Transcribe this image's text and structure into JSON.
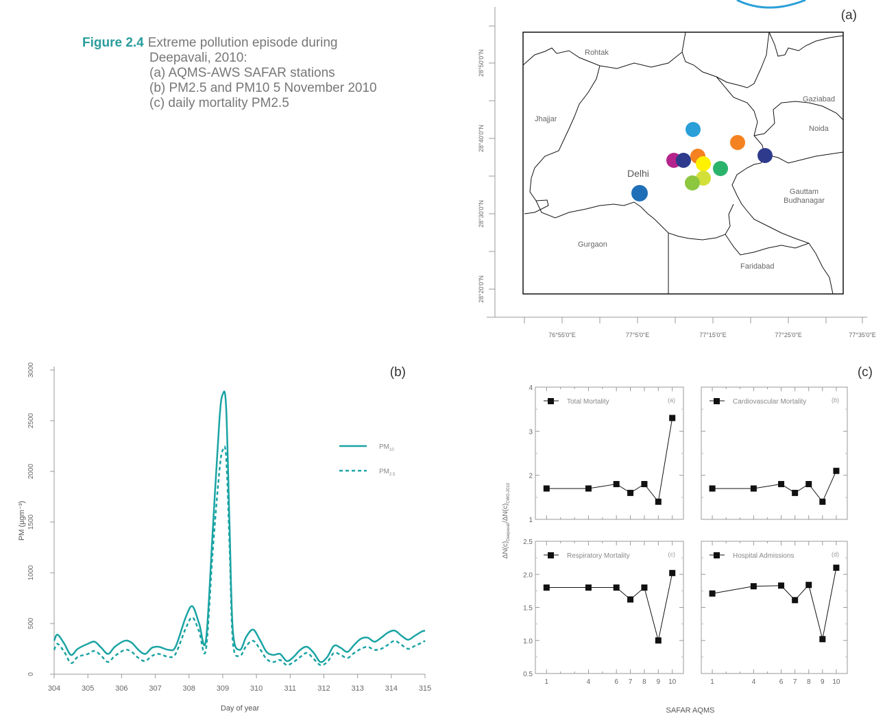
{
  "caption": {
    "label": "Figure 2.4",
    "lines": [
      "Extreme pollution episode during",
      "Deepavali, 2010:",
      "(a) AQMS-AWS SAFAR stations",
      "(b) PM2.5 and PM10 5 November 2010",
      "(c) daily mortality PM2.5"
    ]
  },
  "map_panel": {
    "panel_label": "(a)",
    "lat_ticks": [
      "28°50'0\"N",
      "28°40'0\"N",
      "28°30'0\"N",
      "28°20'0\"N"
    ],
    "lon_ticks": [
      "76°55'0\"E",
      "77°5'0\"E",
      "77°15'0\"E",
      "77°25'0\"E",
      "77°35'0\"E"
    ],
    "regions": [
      "Rohtak",
      "Jhajjar",
      "Delhi",
      "Gurgaon",
      "Gaziabad",
      "Noida",
      "Gauttam",
      "Budhanagar",
      "Faridabad"
    ],
    "station_colors": [
      "#2a9fd8",
      "#f58220",
      "#2e3a8c",
      "#b5238c",
      "#2e3a8c",
      "#f58220",
      "#fff200",
      "#2ab36b",
      "#d4e03a",
      "#8dc63f",
      "#1f6fb8"
    ]
  },
  "chart_data": [
    {
      "type": "line",
      "panel_label": "(b)",
      "xlabel": "Day of year",
      "ylabel": "PM (µgm⁻³)",
      "xlim": [
        304,
        315
      ],
      "ylim": [
        0,
        3000
      ],
      "x_ticks": [
        "304",
        "305",
        "306",
        "307",
        "308",
        "309",
        "310",
        "311",
        "312",
        "313",
        "314",
        "315"
      ],
      "y_ticks": [
        "0",
        "500",
        "1000",
        "1500",
        "2000",
        "2500",
        "3000"
      ],
      "legend_placement": "right",
      "series": [
        {
          "name": "PM10",
          "legend_base": "PM",
          "legend_sub": "10",
          "style": "solid",
          "color": "#1aa3a3",
          "x": [
            304.0,
            304.1,
            304.3,
            304.5,
            304.7,
            305.0,
            305.2,
            305.4,
            305.6,
            305.8,
            306.1,
            306.3,
            306.5,
            306.7,
            306.9,
            307.1,
            307.4,
            307.6,
            307.9,
            308.1,
            308.3,
            308.5,
            308.7,
            308.9,
            309.0,
            309.1,
            309.2,
            309.3,
            309.5,
            309.7,
            309.9,
            310.1,
            310.3,
            310.5,
            310.7,
            310.9,
            311.1,
            311.3,
            311.5,
            311.7,
            311.9,
            312.1,
            312.3,
            312.5,
            312.7,
            312.9,
            313.1,
            313.3,
            313.5,
            313.7,
            313.9,
            314.1,
            314.3,
            314.5,
            314.7,
            314.9,
            315.0
          ],
          "y": [
            330,
            390,
            300,
            190,
            250,
            300,
            320,
            260,
            200,
            270,
            330,
            310,
            240,
            200,
            260,
            270,
            240,
            270,
            560,
            670,
            500,
            330,
            1400,
            2500,
            2760,
            2640,
            1500,
            430,
            240,
            370,
            440,
            340,
            220,
            190,
            200,
            130,
            170,
            240,
            270,
            210,
            120,
            170,
            280,
            260,
            220,
            290,
            350,
            360,
            320,
            360,
            410,
            430,
            380,
            340,
            380,
            420,
            430
          ]
        },
        {
          "name": "PM2.5",
          "legend_base": "PM",
          "legend_sub": "2.5",
          "style": "dashed",
          "color": "#1aa3a3",
          "x": [
            304.0,
            304.1,
            304.3,
            304.5,
            304.7,
            305.0,
            305.2,
            305.4,
            305.6,
            305.8,
            306.1,
            306.3,
            306.5,
            306.7,
            306.9,
            307.1,
            307.4,
            307.6,
            307.9,
            308.1,
            308.3,
            308.5,
            308.7,
            308.9,
            309.0,
            309.1,
            309.2,
            309.3,
            309.5,
            309.7,
            309.9,
            310.1,
            310.3,
            310.5,
            310.7,
            310.9,
            311.1,
            311.3,
            311.5,
            311.7,
            311.9,
            312.1,
            312.3,
            312.5,
            312.7,
            312.9,
            313.1,
            313.3,
            313.5,
            313.7,
            313.9,
            314.1,
            314.3,
            314.5,
            314.7,
            314.9,
            315.0
          ],
          "y": [
            240,
            300,
            220,
            110,
            170,
            200,
            230,
            180,
            120,
            180,
            240,
            220,
            160,
            130,
            180,
            200,
            170,
            200,
            450,
            560,
            420,
            240,
            1200,
            2000,
            2210,
            2150,
            1300,
            320,
            180,
            280,
            330,
            250,
            150,
            120,
            140,
            90,
            120,
            170,
            210,
            150,
            90,
            120,
            210,
            190,
            160,
            210,
            250,
            270,
            240,
            250,
            290,
            330,
            290,
            250,
            280,
            310,
            330
          ]
        }
      ]
    },
    {
      "type": "line",
      "panel_label": "(c)",
      "xlabel": "SAFAR AQMS",
      "ylabel": "ΔN(c)Deepavali/ΔN(c)CWG-2010",
      "ylabel_main_1": "ΔN(c)",
      "ylabel_sub_1": "Deepavali",
      "ylabel_main_2": "/ΔN(c)",
      "ylabel_sub_2": "CWG-2010",
      "x_ticks": [
        "1",
        "4",
        "6",
        "7",
        "8",
        "9",
        "10"
      ],
      "top_y_ticks": [
        "1",
        "2",
        "3",
        "4"
      ],
      "bottom_y_ticks": [
        "0.5",
        "1.0",
        "1.5",
        "2.0",
        "2.5"
      ],
      "subplots": [
        {
          "tag": "(a)",
          "name": "Total Mortality",
          "ylim": [
            1,
            4
          ],
          "x": [
            1,
            4,
            6,
            7,
            8,
            9,
            10
          ],
          "y": [
            1.7,
            1.7,
            1.8,
            1.6,
            1.8,
            1.4,
            3.3
          ]
        },
        {
          "tag": "(b)",
          "name": "Cardiovascular Mortality",
          "ylim": [
            1,
            4
          ],
          "x": [
            1,
            4,
            6,
            7,
            8,
            9,
            10
          ],
          "y": [
            1.7,
            1.7,
            1.8,
            1.6,
            1.8,
            1.4,
            2.1
          ]
        },
        {
          "tag": "(c)",
          "name": "Respiratory Mortality",
          "ylim": [
            0.5,
            2.5
          ],
          "x": [
            1,
            4,
            6,
            7,
            8,
            9,
            10
          ],
          "y": [
            1.8,
            1.8,
            1.8,
            1.62,
            1.8,
            1.0,
            2.02
          ]
        },
        {
          "tag": "(d)",
          "name": "Hospital Admissions",
          "ylim": [
            0.5,
            2.5
          ],
          "x": [
            1,
            4,
            6,
            7,
            8,
            9,
            10
          ],
          "y": [
            1.71,
            1.82,
            1.83,
            1.61,
            1.84,
            1.02,
            2.1
          ]
        }
      ]
    }
  ]
}
